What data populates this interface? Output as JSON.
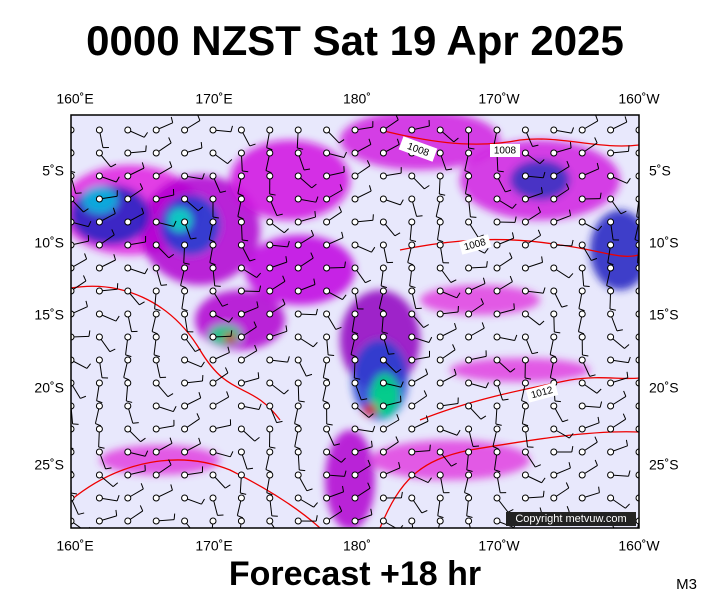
{
  "title": "0000 NZST Sat 19 Apr 2025",
  "longitude_labels": [
    "160˚E",
    "170˚E",
    "180˚",
    "170˚W",
    "160˚W"
  ],
  "latitude_labels": [
    "5˚S",
    "10˚S",
    "15˚S",
    "20˚S",
    "25˚S"
  ],
  "isobar_labels": [
    "1008",
    "1008",
    "1008",
    "1012"
  ],
  "copyright": "Copyright metvuw.com",
  "footer": "Forecast +18 hr",
  "model_label": "M3"
}
